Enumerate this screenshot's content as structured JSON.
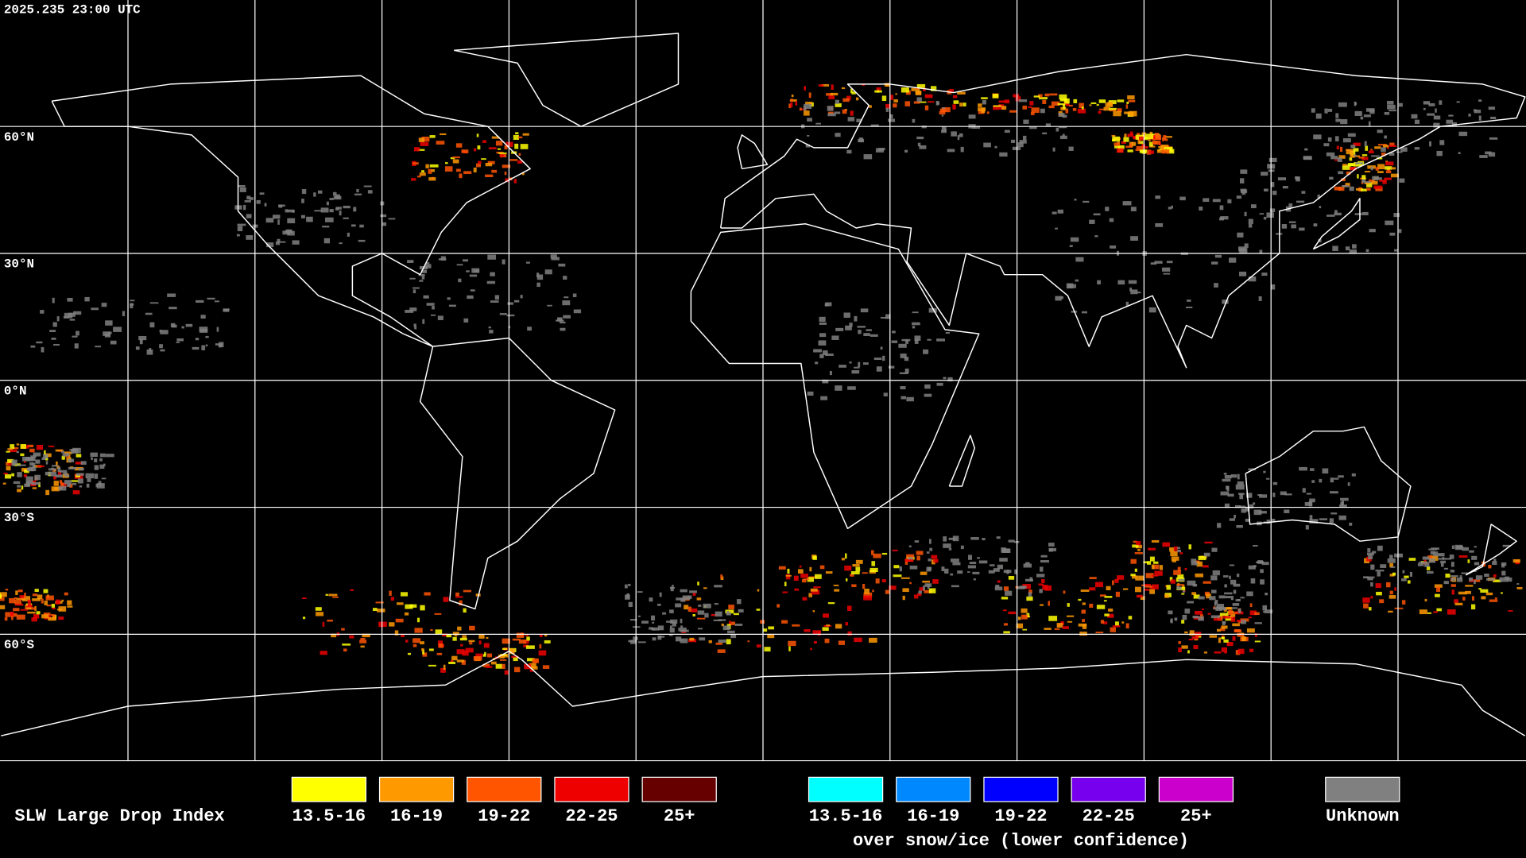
{
  "header": {
    "timestamp": "2025.235 23:00 UTC"
  },
  "map": {
    "latitude_labels": [
      "60°N",
      "30°N",
      "0°N",
      "30°S",
      "60°S"
    ]
  },
  "legend": {
    "title": "SLW Large Drop Index",
    "standard": {
      "items": [
        {
          "label": "13.5-16",
          "color": "#ffff00"
        },
        {
          "label": "16-19",
          "color": "#ff9900"
        },
        {
          "label": "19-22",
          "color": "#ff5500"
        },
        {
          "label": "22-25",
          "color": "#ee0000"
        },
        {
          "label": "25+",
          "color": "#660000"
        }
      ]
    },
    "snow_ice": {
      "items": [
        {
          "label": "13.5-16",
          "color": "#00ffff"
        },
        {
          "label": "16-19",
          "color": "#0088ff"
        },
        {
          "label": "19-22",
          "color": "#0000ff"
        },
        {
          "label": "22-25",
          "color": "#7700ee"
        },
        {
          "label": "25+",
          "color": "#cc00cc"
        }
      ],
      "caption": "over snow/ice (lower confidence)"
    },
    "unknown": {
      "label": "Unknown",
      "color": "#808080"
    }
  }
}
